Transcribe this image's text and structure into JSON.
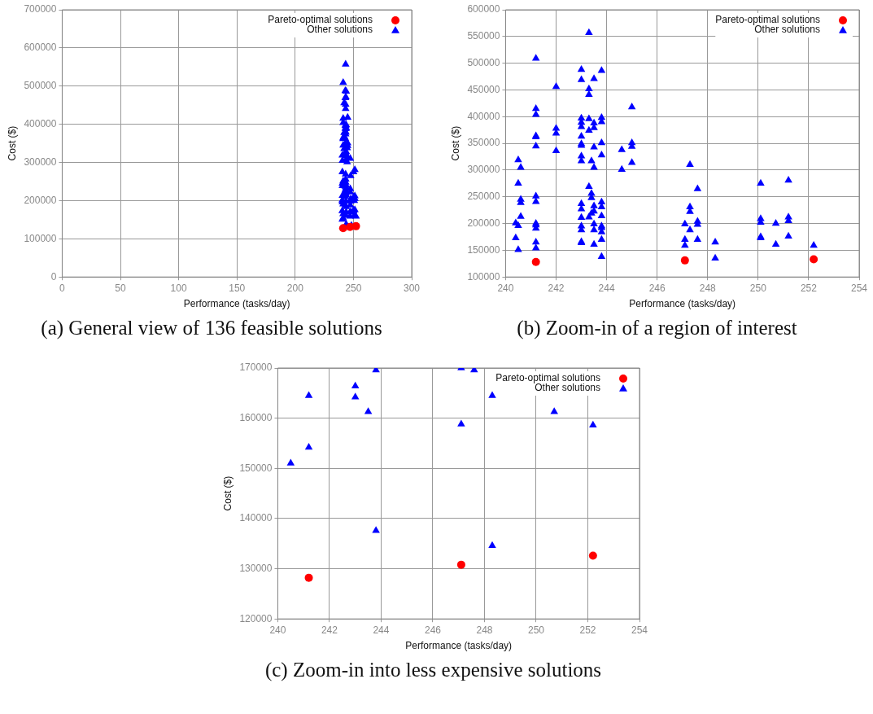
{
  "chart_data": [
    {
      "type": "scatter",
      "title": "(a) General view of 136 feasible solutions",
      "xlabel": "Performance (tasks/day)",
      "ylabel": "Cost ($)",
      "xlim": [
        0,
        300
      ],
      "ylim": [
        0,
        700000
      ],
      "xticks": [
        0,
        50,
        100,
        150,
        200,
        250,
        300
      ],
      "yticks": [
        0,
        100000,
        200000,
        300000,
        400000,
        500000,
        600000,
        700000
      ],
      "grid": true,
      "legend": "top right",
      "series": [
        {
          "name": "Pareto-optimal solutions",
          "color": "#ff0000",
          "marker": "circle",
          "x": [
            241.2,
            247.1,
            252.2
          ],
          "values": [
            128000,
            131000,
            133000
          ]
        },
        {
          "name": "Other solutions",
          "color": "#0000ff",
          "marker": "triangle",
          "x": [
            240.5,
            240.6,
            240.5,
            240.6,
            240.6,
            240.6,
            240.4,
            240.5,
            240.4,
            240.5,
            241.2,
            241.2,
            241.2,
            241.2,
            241.2,
            241.2,
            241.2,
            241.2,
            241.2,
            241.2,
            242.0,
            242.0,
            242.0,
            242.0,
            243.0,
            243.0,
            243.0,
            243.0,
            243.0,
            243.0,
            243.0,
            243.0,
            243.0,
            243.0,
            243.0,
            243.0,
            243.0,
            243.3,
            243.5,
            243.3,
            243.3,
            243.3,
            243.5,
            243.5,
            243.3,
            243.5,
            243.3,
            243.4,
            243.4,
            243.5,
            243.5,
            243.4,
            243.5,
            243.5,
            243.8,
            243.8,
            243.8,
            243.8,
            243.8,
            243.8,
            243.8,
            243.8,
            243.8,
            244.6,
            244.6,
            245.0,
            245.0,
            245.0,
            245.0,
            247.1,
            247.1,
            247.3,
            247.3,
            247.3,
            247.3,
            247.6,
            247.6,
            247.6,
            247.6,
            248.3,
            250.1,
            250.1,
            250.1,
            250.1,
            250.7,
            250.7,
            251.2,
            251.2,
            251.2,
            251.2,
            252.2
          ],
          "values": [
            319000,
            305000,
            275000,
            245000,
            239000,
            213000,
            201000,
            196000,
            173000,
            151000,
            509000,
            415000,
            404000,
            364000,
            362000,
            345000,
            251000,
            191000,
            165000,
            154000,
            456000,
            378000,
            369000,
            336000,
            488000,
            469000,
            397000,
            389000,
            381000,
            363000,
            349000,
            326000,
            317000,
            237000,
            227000,
            211000,
            188000,
            557000,
            471000,
            452000,
            441000,
            396000,
            388000,
            379000,
            374000,
            305000,
            269000,
            256000,
            248000,
            233000,
            223000,
            219000,
            199000,
            161000,
            486000,
            398000,
            390000,
            328000,
            240000,
            214000,
            184000,
            170000,
            138000,
            338000,
            301000,
            418000,
            351000,
            344000,
            314000,
            170000,
            159000,
            310000,
            231000,
            222000,
            188000,
            265000,
            204000,
            198000,
            170000,
            135000,
            275000,
            209000,
            175000,
            173000,
            200000,
            161000,
            281000,
            212000,
            205000,
            176000,
            159000
          ]
        }
      ]
    },
    {
      "type": "scatter",
      "title": "(b) Zoom-in of a region of interest",
      "xlabel": "Performance (tasks/day)",
      "ylabel": "Cost ($)",
      "xlim": [
        240,
        254
      ],
      "ylim": [
        100000,
        600000
      ],
      "xticks": [
        240,
        242,
        244,
        246,
        248,
        250,
        252,
        254
      ],
      "yticks": [
        100000,
        150000,
        200000,
        250000,
        300000,
        350000,
        400000,
        450000,
        500000,
        550000,
        600000
      ],
      "grid": true,
      "legend": "top right",
      "series": [
        {
          "name": "Pareto-optimal solutions",
          "color": "#ff0000",
          "marker": "circle",
          "x": [
            241.2,
            247.1,
            252.2
          ],
          "values": [
            128000,
            131000,
            133000
          ]
        },
        {
          "name": "Other solutions",
          "color": "#0000ff",
          "marker": "triangle",
          "x": [
            240.5,
            240.6,
            240.5,
            240.6,
            240.6,
            240.6,
            240.4,
            240.5,
            240.4,
            240.5,
            241.2,
            241.2,
            241.2,
            241.2,
            241.2,
            241.2,
            241.2,
            241.2,
            241.2,
            241.2,
            241.2,
            241.2,
            241.2,
            242.0,
            242.0,
            242.0,
            242.0,
            243.0,
            243.0,
            243.0,
            243.0,
            243.0,
            243.0,
            243.0,
            243.0,
            243.0,
            243.0,
            243.0,
            243.0,
            243.0,
            243.0,
            243.0,
            243.0,
            243.0,
            243.3,
            243.5,
            243.3,
            243.3,
            243.3,
            243.5,
            243.5,
            243.3,
            243.5,
            243.4,
            243.5,
            243.3,
            243.4,
            243.4,
            243.5,
            243.5,
            243.4,
            243.3,
            243.5,
            243.5,
            243.5,
            243.8,
            243.8,
            243.8,
            243.8,
            243.8,
            243.8,
            243.8,
            243.8,
            243.8,
            243.8,
            243.8,
            243.8,
            243.8,
            244.6,
            244.6,
            245.0,
            245.0,
            245.0,
            245.0,
            247.1,
            247.1,
            247.1,
            247.3,
            247.3,
            247.3,
            247.3,
            247.6,
            247.6,
            247.6,
            247.6,
            248.3,
            248.3,
            250.1,
            250.1,
            250.1,
            250.1,
            250.1,
            250.7,
            250.7,
            251.2,
            251.2,
            251.2,
            251.2,
            252.2
          ],
          "values": [
            319000,
            305000,
            275000,
            245000,
            239000,
            213000,
            201000,
            196000,
            173000,
            151000,
            509000,
            415000,
            404000,
            364000,
            362000,
            345000,
            251000,
            241000,
            200000,
            197000,
            191000,
            165000,
            154000,
            456000,
            378000,
            369000,
            336000,
            488000,
            469000,
            397000,
            389000,
            381000,
            363000,
            349000,
            346000,
            326000,
            317000,
            237000,
            227000,
            211000,
            195000,
            188000,
            166000,
            164000,
            557000,
            471000,
            452000,
            441000,
            396000,
            388000,
            379000,
            374000,
            343000,
            317000,
            305000,
            269000,
            256000,
            248000,
            233000,
            223000,
            219000,
            212000,
            199000,
            188000,
            161000,
            486000,
            398000,
            390000,
            351000,
            328000,
            240000,
            231000,
            214000,
            195000,
            192000,
            184000,
            170000,
            138000,
            338000,
            301000,
            418000,
            351000,
            344000,
            314000,
            199000,
            170000,
            159000,
            310000,
            231000,
            222000,
            188000,
            265000,
            204000,
            198000,
            170000,
            165000,
            135000,
            275000,
            209000,
            202000,
            175000,
            173000,
            200000,
            161000,
            281000,
            212000,
            205000,
            176000,
            159000
          ]
        }
      ]
    },
    {
      "type": "scatter",
      "title": "(c) Zoom-in into less expensive solutions",
      "xlabel": "Performance (tasks/day)",
      "ylabel": "Cost ($)",
      "xlim": [
        240,
        254
      ],
      "ylim": [
        120000,
        170000
      ],
      "xticks": [
        240,
        242,
        244,
        246,
        248,
        250,
        252,
        254
      ],
      "yticks": [
        120000,
        130000,
        140000,
        150000,
        160000,
        170000
      ],
      "grid": true,
      "legend": "top right",
      "series": [
        {
          "name": "Pareto-optimal solutions",
          "color": "#ff0000",
          "marker": "circle",
          "x": [
            241.2,
            247.1,
            252.2
          ],
          "values": [
            128200,
            130800,
            132600
          ]
        },
        {
          "name": "Other solutions",
          "color": "#0000ff",
          "marker": "triangle",
          "x": [
            240.5,
            241.2,
            241.2,
            243.0,
            243.0,
            243.5,
            243.8,
            243.8,
            247.1,
            247.1,
            247.6,
            248.3,
            248.3,
            250.7,
            252.2
          ],
          "values": [
            151000,
            164500,
            154200,
            166400,
            164200,
            161300,
            169600,
            137600,
            170000,
            158800,
            169600,
            164500,
            134600,
            161300,
            158600
          ]
        }
      ]
    }
  ]
}
